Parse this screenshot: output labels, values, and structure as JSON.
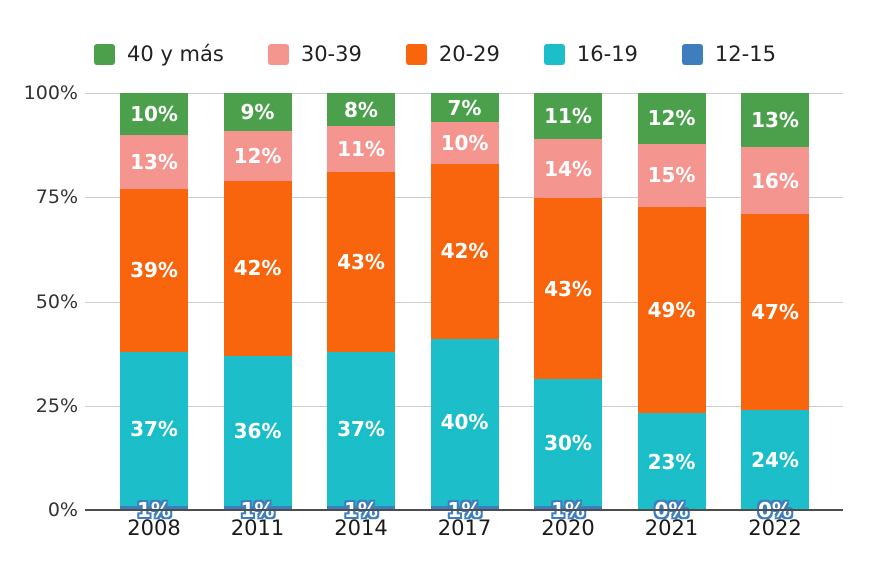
{
  "chart_data": {
    "type": "bar",
    "stacked": true,
    "orientation": "vertical",
    "title": "",
    "xlabel": "",
    "ylabel": "",
    "categories": [
      "2008",
      "2011",
      "2014",
      "2017",
      "2020",
      "2021",
      "2022"
    ],
    "series": [
      {
        "name": "12-15",
        "color": "#3E7EBC",
        "values": [
          1,
          1,
          1,
          1,
          1,
          0,
          0
        ]
      },
      {
        "name": "16-19",
        "color": "#1BBEC9",
        "values": [
          37,
          36,
          37,
          40,
          30,
          23,
          24
        ]
      },
      {
        "name": "20-29",
        "color": "#F8650D",
        "values": [
          39,
          42,
          43,
          42,
          43,
          49,
          47
        ]
      },
      {
        "name": "30-39",
        "color": "#F5958F",
        "values": [
          13,
          12,
          11,
          10,
          14,
          15,
          16
        ]
      },
      {
        "name": "40 y más",
        "color": "#4CA04C",
        "values": [
          10,
          9,
          8,
          7,
          11,
          12,
          13
        ]
      }
    ],
    "data_labels": {
      "suffix": "%",
      "color": "#ffffff",
      "baseline_series": "12-15",
      "baseline_halo_color": "#3E7EBC"
    },
    "legend_position": "top",
    "legend_order": [
      "40 y más",
      "30-39",
      "20-29",
      "16-19",
      "12-15"
    ],
    "y_ticks": [
      "0%",
      "25%",
      "50%",
      "75%",
      "100%"
    ],
    "y_tick_values": [
      0,
      25,
      50,
      75,
      100
    ],
    "ylim": [
      0,
      100
    ],
    "grid": true,
    "grid_color": "#cccccc",
    "axis_line_color": "#4d4d4d",
    "background_color": "#ffffff"
  }
}
